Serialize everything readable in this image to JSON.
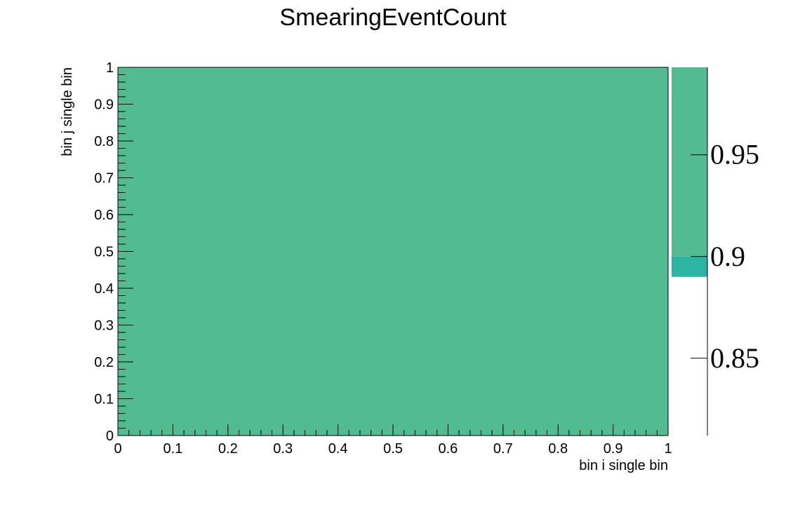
{
  "chart_data": {
    "type": "heatmap",
    "title": "SmearingEventCount",
    "xlabel": "bin i single bin",
    "ylabel": "bin j single bin",
    "xlim": [
      0,
      1
    ],
    "ylim": [
      0,
      1
    ],
    "x_ticks": [
      "0",
      "0.1",
      "0.2",
      "0.3",
      "0.4",
      "0.5",
      "0.6",
      "0.7",
      "0.8",
      "0.9",
      "1"
    ],
    "y_ticks": [
      "0",
      "0.1",
      "0.2",
      "0.3",
      "0.4",
      "0.5",
      "0.6",
      "0.7",
      "0.8",
      "0.9",
      "1"
    ],
    "cells": [
      {
        "x": [
          0,
          1
        ],
        "y": [
          0,
          1
        ],
        "value": 1,
        "color": "#52bb91"
      }
    ],
    "colorbar": {
      "range": [
        0.812,
        0.993
      ],
      "ticks": [
        "0.85",
        "0.9",
        "0.95"
      ],
      "tick_values": [
        0.85,
        0.9,
        0.95
      ],
      "segments": [
        {
          "from": 0.89,
          "to": 0.9,
          "color": "#2bb6a4"
        },
        {
          "from": 0.9,
          "to": 0.993,
          "color": "#52bb91"
        }
      ]
    },
    "grid": false,
    "legend": "none"
  }
}
